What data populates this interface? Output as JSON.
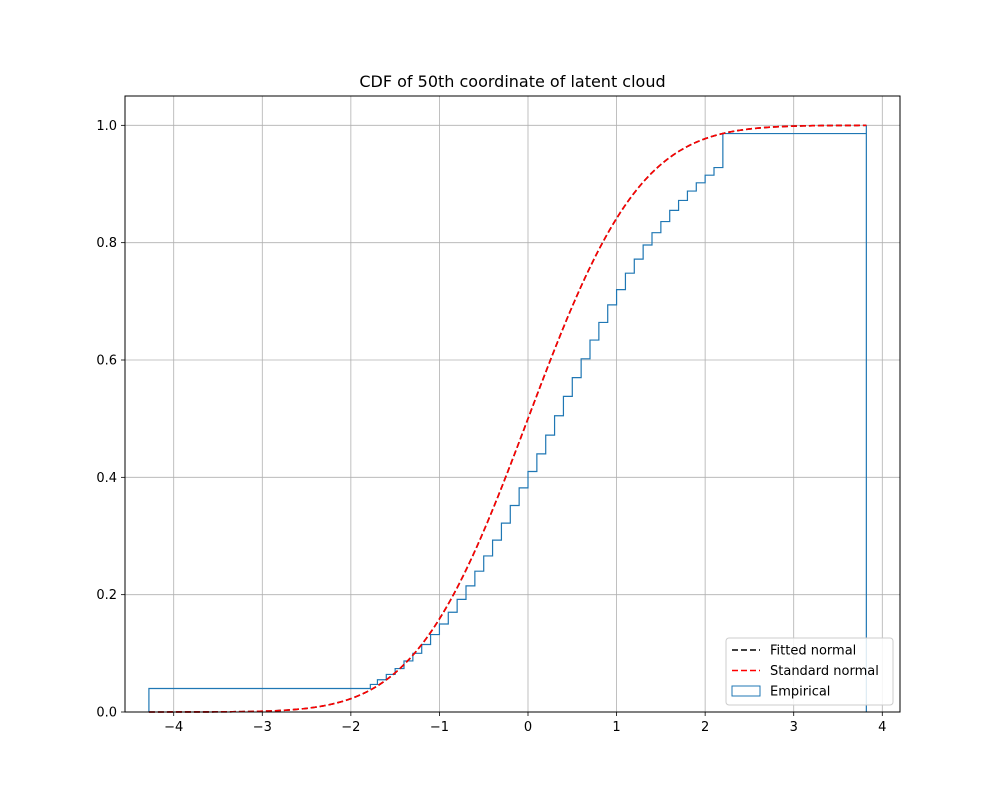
{
  "chart_data": {
    "type": "line",
    "title": "CDF of 50th coordinate of latent cloud",
    "xlabel": "",
    "ylabel": "",
    "xlim": [
      -4.55,
      4.2
    ],
    "ylim": [
      0.0,
      1.05
    ],
    "grid": true,
    "legend_position": "lower-right",
    "x_ticks": [
      -4,
      -3,
      -2,
      -1,
      0,
      1,
      2,
      3,
      4
    ],
    "x_tick_labels": [
      "−4",
      "−3",
      "−2",
      "−1",
      "0",
      "1",
      "2",
      "3",
      "4"
    ],
    "y_ticks": [
      0.0,
      0.2,
      0.4,
      0.6,
      0.8,
      1.0
    ],
    "y_tick_labels": [
      "0.0",
      "0.2",
      "0.4",
      "0.6",
      "0.8",
      "1.0"
    ],
    "series": [
      {
        "name": "Fitted normal",
        "kind": "normal_cdf_dashed",
        "mean": 0.0,
        "std": 1.0,
        "x_range": [
          -4.28,
          3.82
        ],
        "color": "#000000"
      },
      {
        "name": "Standard normal",
        "kind": "normal_cdf_dashed",
        "mean": 0.0,
        "std": 1.0,
        "x_range": [
          -4.28,
          3.82
        ],
        "color": "#ff0000"
      },
      {
        "name": "Empirical",
        "kind": "step_histogram_cumulative",
        "bin_edges": [
          -4.28,
          -1.78,
          -1.7,
          -1.6,
          -1.5,
          -1.4,
          -1.3,
          -1.2,
          -1.1,
          -1.0,
          -0.9,
          -0.8,
          -0.7,
          -0.6,
          -0.5,
          -0.4,
          -0.3,
          -0.2,
          -0.1,
          0.0,
          0.1,
          0.2,
          0.3,
          0.4,
          0.5,
          0.6,
          0.7,
          0.8,
          0.9,
          1.0,
          1.1,
          1.2,
          1.3,
          1.4,
          1.5,
          1.6,
          1.7,
          1.8,
          1.9,
          2.0,
          2.1,
          2.2,
          3.82
        ],
        "cumulative_values": [
          0.04,
          0.047,
          0.055,
          0.064,
          0.074,
          0.087,
          0.1,
          0.115,
          0.132,
          0.15,
          0.17,
          0.192,
          0.215,
          0.24,
          0.266,
          0.293,
          0.322,
          0.352,
          0.382,
          0.41,
          0.44,
          0.472,
          0.505,
          0.538,
          0.57,
          0.602,
          0.634,
          0.664,
          0.694,
          0.72,
          0.748,
          0.772,
          0.796,
          0.817,
          0.836,
          0.855,
          0.872,
          0.888,
          0.902,
          0.915,
          0.928,
          0.986
        ],
        "final_value": 1.0,
        "color": "#1f77b4"
      }
    ]
  }
}
